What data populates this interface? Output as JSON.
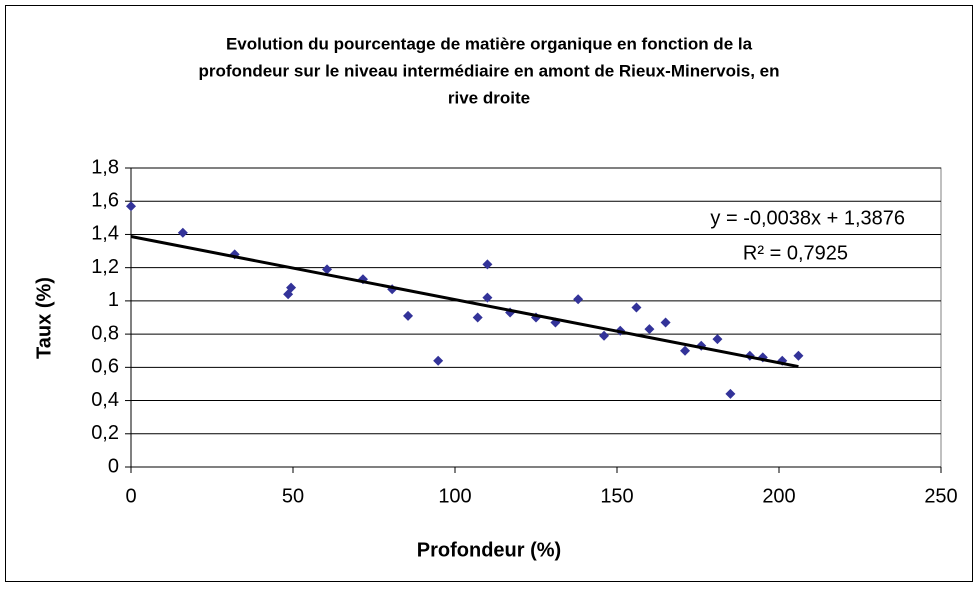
{
  "chart_data": {
    "type": "scatter",
    "title": [
      "Evolution du pourcentage de matière organique en fonction de la",
      "profondeur sur le niveau intermédiaire en amont de Rieux-Minervois, en",
      "rive droite"
    ],
    "x_label": "Profondeur (%)",
    "y_label": "Taux (%)",
    "xlim": [
      0,
      250
    ],
    "xticks": [
      0,
      50,
      100,
      150,
      200,
      250
    ],
    "ylim": [
      0,
      1.8
    ],
    "yticks": [
      0,
      {
        "value": 0.2,
        "label": "0,2"
      },
      {
        "value": 0.4,
        "label": "0,4"
      },
      {
        "value": 0.6,
        "label": "0,6"
      },
      {
        "value": 0.8,
        "label": "0,8"
      },
      1,
      {
        "value": 1.2,
        "label": "1,2"
      },
      {
        "value": 1.4,
        "label": "1,4"
      },
      {
        "value": 1.6,
        "label": "1,6"
      },
      {
        "value": 1.8,
        "label": "1,8"
      }
    ],
    "grid": true,
    "color": "#333399",
    "x": [
      0,
      16,
      32,
      48.5,
      49.4,
      60.5,
      71.6,
      80.6,
      85.5,
      94.8,
      107,
      110,
      110,
      117,
      125,
      131,
      138,
      146,
      151,
      156,
      160,
      165,
      171,
      176,
      181,
      185,
      191,
      195,
      201,
      206
    ],
    "values": [
      1.57,
      1.41,
      1.28,
      1.04,
      1.08,
      1.19,
      1.13,
      1.07,
      0.91,
      0.64,
      0.9,
      1.22,
      1.02,
      0.93,
      0.9,
      0.87,
      1.01,
      0.79,
      0.82,
      0.96,
      0.83,
      0.87,
      0.7,
      0.73,
      0.77,
      0.44,
      0.67,
      0.66,
      0.64,
      0.67
    ],
    "trendline": {
      "slope": -0.0038,
      "intercept": 1.3876,
      "color": "#000000",
      "label": "y = -0,0038x + 1,3876",
      "r2": 0.7925,
      "r2_label": "R² = 0,7925"
    }
  }
}
